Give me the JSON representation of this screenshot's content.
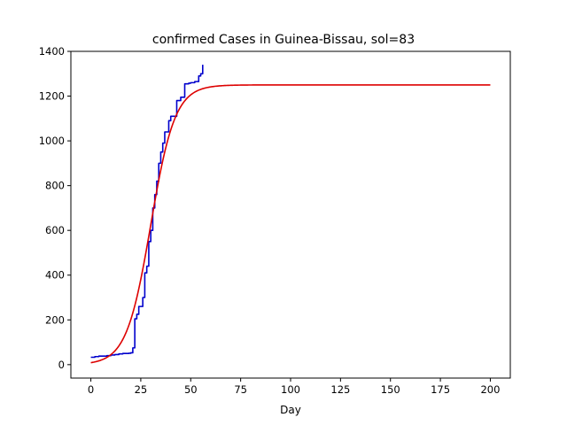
{
  "chart_data": {
    "type": "line",
    "title": "confirmed Cases in Guinea-Bissau, sol=83",
    "xlabel": "Day",
    "ylabel": "",
    "xlim": [
      -10,
      210
    ],
    "ylim": [
      -60,
      1400
    ],
    "xticks": [
      0,
      25,
      50,
      75,
      100,
      125,
      150,
      175,
      200
    ],
    "yticks": [
      0,
      200,
      400,
      600,
      800,
      1000,
      1200,
      1400
    ],
    "grid": false,
    "legend": "none",
    "series": [
      {
        "color": "#0000cc",
        "step": true,
        "x": [
          0,
          2,
          4,
          6,
          8,
          10,
          12,
          14,
          16,
          18,
          19,
          20,
          21,
          22,
          23,
          24,
          25,
          26,
          27,
          28,
          29,
          30,
          31,
          32,
          33,
          34,
          35,
          36,
          37,
          38,
          39,
          40,
          41,
          42,
          43,
          44,
          45,
          46,
          47,
          48,
          49,
          50,
          51,
          52,
          53,
          54,
          55,
          56
        ],
        "y": [
          33,
          36,
          38,
          38,
          40,
          43,
          45,
          48,
          50,
          50,
          51,
          53,
          75,
          205,
          225,
          260,
          260,
          300,
          410,
          440,
          550,
          600,
          700,
          760,
          820,
          900,
          950,
          990,
          1040,
          1040,
          1090,
          1110,
          1110,
          1110,
          1180,
          1180,
          1195,
          1195,
          1255,
          1255,
          1258,
          1260,
          1260,
          1265,
          1265,
          1290,
          1300,
          1340
        ]
      },
      {
        "color": "#dd0000",
        "step": false,
        "model": "logistic",
        "K": 1250,
        "r": 0.165,
        "x0": 30,
        "x": [
          0,
          5,
          10,
          15,
          20,
          25,
          30,
          35,
          40,
          45,
          50,
          55,
          60,
          65,
          70,
          75,
          80,
          90,
          100,
          125,
          150,
          175,
          200
        ],
        "y": [
          9,
          20,
          45,
          98,
          201,
          379,
          625,
          871,
          1049,
          1152,
          1205,
          1230,
          1241,
          1246,
          1248,
          1249,
          1250,
          1250,
          1250,
          1250,
          1250,
          1250,
          1250
        ]
      }
    ]
  }
}
